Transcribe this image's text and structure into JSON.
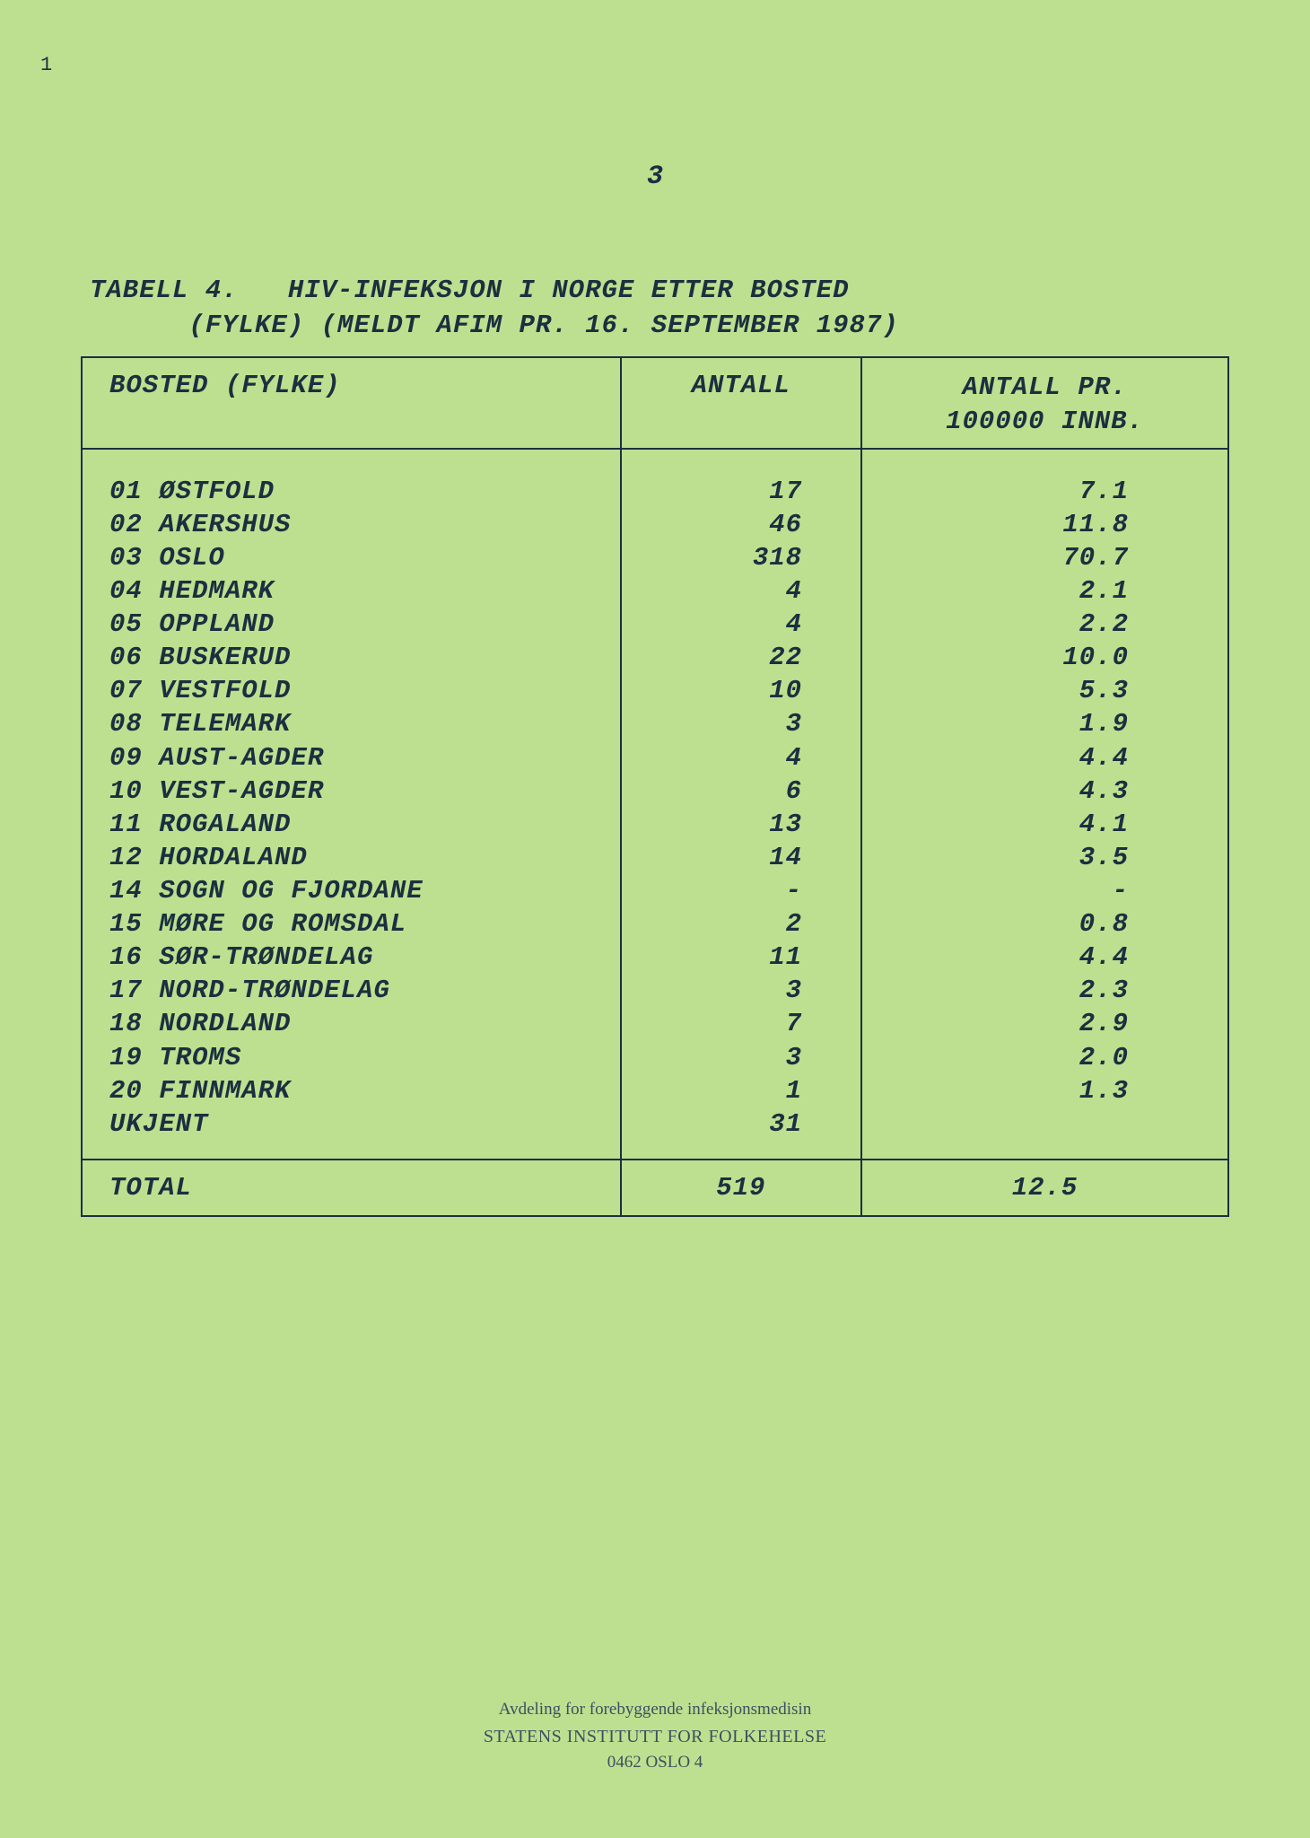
{
  "page": {
    "number": "3",
    "background_color": "#bde090",
    "text_color": "#1a3040"
  },
  "title": {
    "line1": "TABELL 4.   HIV-INFEKSJON I NORGE ETTER BOSTED",
    "line2": "      (FYLKE) (MELDT AFIM PR. 16. SEPTEMBER 1987)"
  },
  "table": {
    "type": "table",
    "columns": {
      "bosted": "BOSTED (FYLKE)",
      "antall": "ANTALL",
      "rate_line1": "ANTALL PR.",
      "rate_line2": "100000 INNB."
    },
    "rows": [
      {
        "code": "01",
        "name": "ØSTFOLD",
        "antall": "17",
        "rate": "7.1"
      },
      {
        "code": "02",
        "name": "AKERSHUS",
        "antall": "46",
        "rate": "11.8"
      },
      {
        "code": "03",
        "name": "OSLO",
        "antall": "318",
        "rate": "70.7"
      },
      {
        "code": "04",
        "name": "HEDMARK",
        "antall": "4",
        "rate": "2.1"
      },
      {
        "code": "05",
        "name": "OPPLAND",
        "antall": "4",
        "rate": "2.2"
      },
      {
        "code": "06",
        "name": "BUSKERUD",
        "antall": "22",
        "rate": "10.0"
      },
      {
        "code": "07",
        "name": "VESTFOLD",
        "antall": "10",
        "rate": "5.3"
      },
      {
        "code": "08",
        "name": "TELEMARK",
        "antall": "3",
        "rate": "1.9"
      },
      {
        "code": "09",
        "name": "AUST-AGDER",
        "antall": "4",
        "rate": "4.4"
      },
      {
        "code": "10",
        "name": "VEST-AGDER",
        "antall": "6",
        "rate": "4.3"
      },
      {
        "code": "11",
        "name": "ROGALAND",
        "antall": "13",
        "rate": "4.1"
      },
      {
        "code": "12",
        "name": "HORDALAND",
        "antall": "14",
        "rate": "3.5"
      },
      {
        "code": "14",
        "name": "SOGN OG FJORDANE",
        "antall": "-",
        "rate": "-"
      },
      {
        "code": "15",
        "name": "MØRE OG ROMSDAL",
        "antall": "2",
        "rate": "0.8"
      },
      {
        "code": "16",
        "name": "SØR-TRØNDELAG",
        "antall": "11",
        "rate": "4.4"
      },
      {
        "code": "17",
        "name": "NORD-TRØNDELAG",
        "antall": "3",
        "rate": "2.3"
      },
      {
        "code": "18",
        "name": "NORDLAND",
        "antall": "7",
        "rate": "2.9"
      },
      {
        "code": "19",
        "name": "TROMS",
        "antall": "3",
        "rate": "2.0"
      },
      {
        "code": "20",
        "name": "FINNMARK",
        "antall": "1",
        "rate": "1.3"
      },
      {
        "code": "",
        "name": "UKJENT",
        "antall": "31",
        "rate": ""
      }
    ],
    "total": {
      "label": "TOTAL",
      "antall": "519",
      "rate": "12.5"
    }
  },
  "footer": {
    "line1": "Avdeling for forebyggende infeksjonsmedisin",
    "line2": "STATENS INSTITUTT FOR FOLKEHELSE",
    "line3": "0462  OSLO 4"
  },
  "artifact": "1"
}
